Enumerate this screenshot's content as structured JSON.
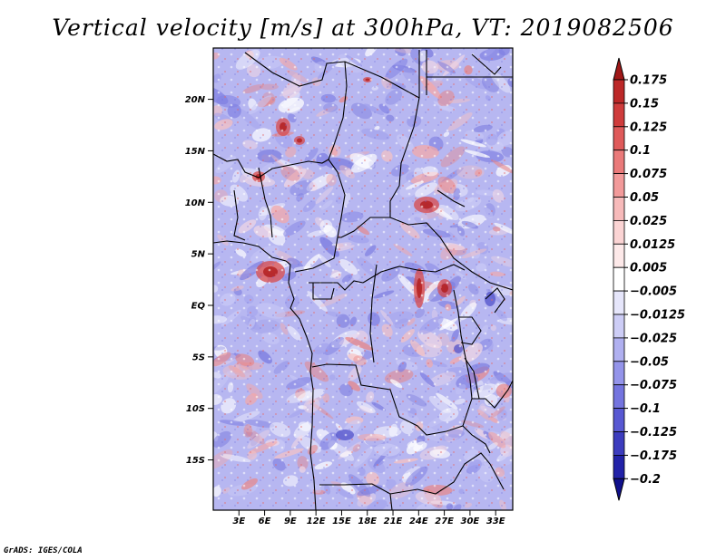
{
  "title": "Vertical velocity [m/s] at 300hPa, VT: 2019082506",
  "credit": "GrADS: IGES/COLA",
  "lat_labels": [
    "20N",
    "15N",
    "10N",
    "5N",
    "EQ",
    "5S",
    "10S",
    "15S"
  ],
  "lon_labels": [
    "3E",
    "6E",
    "9E",
    "12E",
    "15E",
    "18E",
    "21E",
    "24E",
    "27E",
    "30E",
    "33E"
  ],
  "map": {
    "lon_range": [
      0,
      35
    ],
    "lat_range": [
      -20,
      25
    ],
    "field": "vertical velocity",
    "units": "m/s",
    "level": "300hPa"
  },
  "colorbar": {
    "labels": [
      "0.175",
      "0.15",
      "0.125",
      "0.1",
      "0.075",
      "0.05",
      "0.025",
      "0.0125",
      "0.005",
      "−0.005",
      "−0.0125",
      "−0.025",
      "−0.05",
      "−0.075",
      "−0.1",
      "−0.125",
      "−0.175",
      "−0.2"
    ],
    "colors": [
      "#a01818",
      "#bc2828",
      "#cf3c3c",
      "#df5a5a",
      "#ea7a7a",
      "#f29a9a",
      "#f7baba",
      "#fbd4d4",
      "#fde9e9",
      "#ffffff",
      "#e6e6fb",
      "#cdcdf6",
      "#b0b0f0",
      "#9494ea",
      "#7474df",
      "#5858d2",
      "#3c3cbe",
      "#2222a8",
      "#10108c"
    ]
  }
}
